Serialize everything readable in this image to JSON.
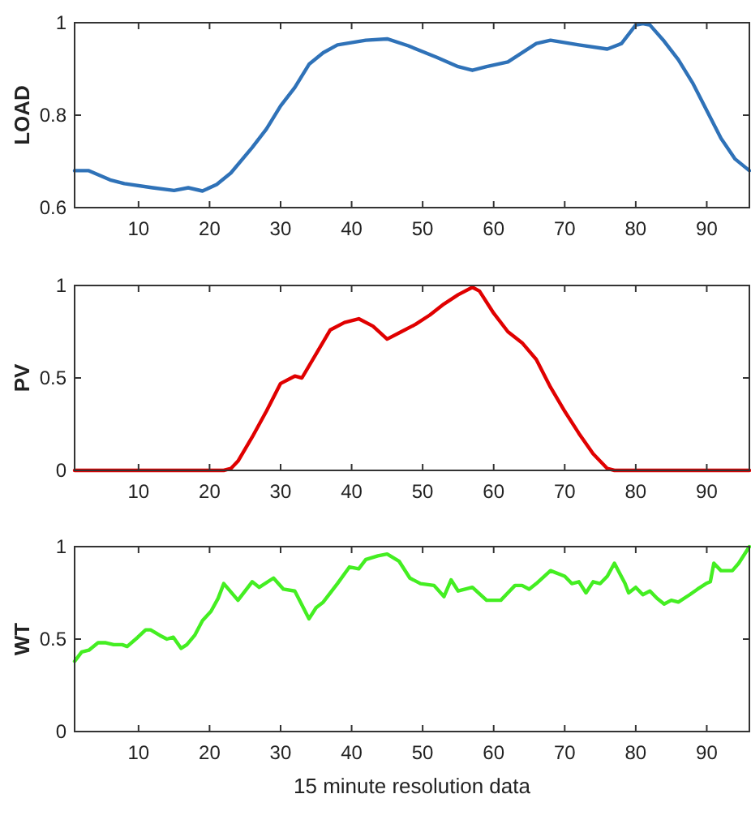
{
  "chart_data": [
    {
      "type": "line",
      "ylabel": "LOAD",
      "xlim": [
        1,
        96
      ],
      "xticks": [
        10,
        20,
        30,
        40,
        50,
        60,
        70,
        80,
        90
      ],
      "ylim": [
        0.6,
        1
      ],
      "yticks": [
        0.6,
        0.8,
        1
      ],
      "x": [
        1,
        3,
        6,
        8,
        12,
        15,
        17,
        19,
        21,
        23,
        26,
        28,
        30,
        32,
        34,
        36,
        38,
        42,
        45,
        48,
        52,
        55,
        57,
        59,
        62,
        66,
        68,
        72,
        76,
        78,
        80,
        81,
        82,
        84,
        86,
        88,
        90,
        92,
        94,
        96
      ],
      "series": [
        {
          "color": "#2f72b8",
          "values": [
            0.68,
            0.68,
            0.66,
            0.652,
            0.643,
            0.637,
            0.643,
            0.636,
            0.65,
            0.675,
            0.73,
            0.77,
            0.82,
            0.86,
            0.91,
            0.935,
            0.952,
            0.962,
            0.965,
            0.95,
            0.925,
            0.905,
            0.897,
            0.905,
            0.915,
            0.955,
            0.962,
            0.952,
            0.943,
            0.955,
            0.995,
            0.998,
            0.995,
            0.96,
            0.92,
            0.87,
            0.81,
            0.75,
            0.705,
            0.68
          ]
        }
      ]
    },
    {
      "type": "line",
      "ylabel": "PV",
      "xlim": [
        1,
        96
      ],
      "xticks": [
        10,
        20,
        30,
        40,
        50,
        60,
        70,
        80,
        90
      ],
      "ylim": [
        0,
        1
      ],
      "yticks": [
        0,
        0.5,
        1
      ],
      "x": [
        1,
        22,
        23,
        24,
        26,
        28,
        30,
        32,
        33,
        35,
        37,
        39,
        41,
        43,
        45,
        47,
        49,
        51,
        53,
        55,
        57,
        58,
        60,
        62,
        64,
        66,
        68,
        70,
        72,
        74,
        76,
        77,
        96
      ],
      "series": [
        {
          "color": "#e00000",
          "values": [
            0,
            0,
            0.01,
            0.05,
            0.18,
            0.32,
            0.47,
            0.51,
            0.5,
            0.63,
            0.76,
            0.8,
            0.82,
            0.78,
            0.71,
            0.75,
            0.79,
            0.84,
            0.9,
            0.95,
            0.99,
            0.97,
            0.85,
            0.75,
            0.69,
            0.6,
            0.45,
            0.32,
            0.2,
            0.09,
            0.01,
            0,
            0
          ]
        }
      ]
    },
    {
      "type": "line",
      "ylabel": "WT",
      "xlabel": "15 minute resolution data",
      "xlim": [
        1,
        96
      ],
      "xticks": [
        10,
        20,
        30,
        40,
        50,
        60,
        70,
        80,
        90
      ],
      "ylim": [
        0,
        1
      ],
      "yticks": [
        0,
        0.5,
        1
      ],
      "x": [
        1,
        2,
        3,
        4.3,
        5.4,
        6.5,
        7.7,
        8.4,
        9.9,
        11,
        11.7,
        13,
        14,
        14.9,
        16,
        16.8,
        17.9,
        19,
        20.2,
        21.2,
        22,
        24,
        26,
        27,
        29,
        30.4,
        32,
        34,
        35,
        36,
        38,
        39.7,
        41,
        42,
        43.7,
        45,
        46.7,
        48.2,
        49.7,
        51.6,
        53,
        54,
        55,
        57,
        59,
        61,
        62,
        63,
        64,
        65,
        66,
        68,
        70,
        71,
        72,
        73,
        74,
        75,
        76,
        77,
        78.5,
        79,
        80,
        81,
        82,
        83,
        84,
        85,
        86,
        87.6,
        88.7,
        89.9,
        90.5,
        91,
        92,
        93.6,
        94.5,
        96
      ],
      "series": [
        {
          "color": "#44ee22",
          "values": [
            0.38,
            0.43,
            0.44,
            0.48,
            0.48,
            0.47,
            0.47,
            0.46,
            0.51,
            0.55,
            0.55,
            0.52,
            0.5,
            0.51,
            0.45,
            0.47,
            0.52,
            0.6,
            0.65,
            0.72,
            0.8,
            0.71,
            0.81,
            0.78,
            0.83,
            0.77,
            0.76,
            0.61,
            0.67,
            0.7,
            0.8,
            0.89,
            0.88,
            0.93,
            0.95,
            0.96,
            0.92,
            0.83,
            0.8,
            0.79,
            0.73,
            0.82,
            0.76,
            0.78,
            0.71,
            0.71,
            0.75,
            0.79,
            0.79,
            0.77,
            0.8,
            0.87,
            0.84,
            0.8,
            0.81,
            0.75,
            0.81,
            0.8,
            0.84,
            0.91,
            0.8,
            0.75,
            0.78,
            0.74,
            0.76,
            0.72,
            0.69,
            0.71,
            0.7,
            0.74,
            0.77,
            0.8,
            0.81,
            0.91,
            0.87,
            0.87,
            0.91,
            1.0
          ]
        }
      ]
    }
  ]
}
